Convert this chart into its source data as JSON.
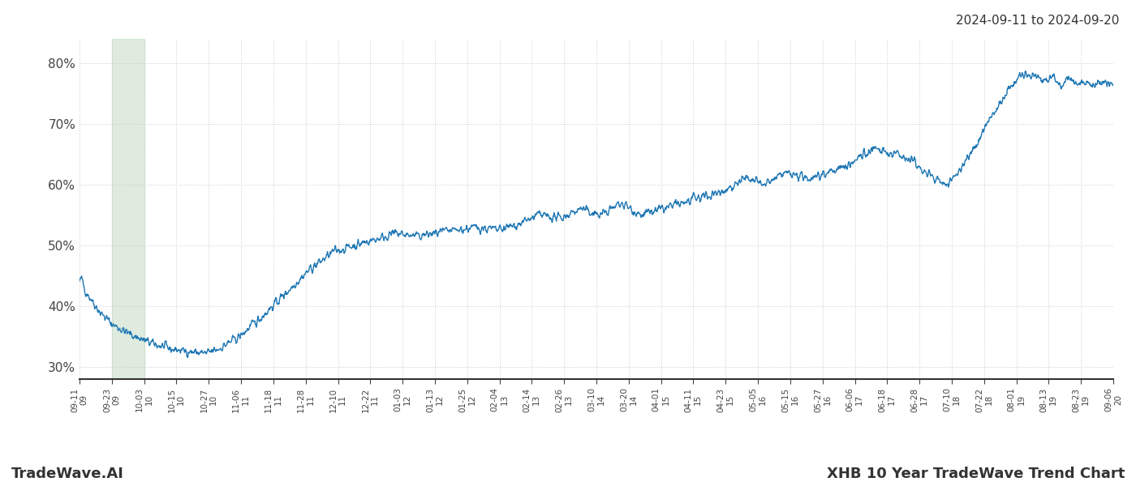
{
  "title_top_right": "2024-09-11 to 2024-09-20",
  "bottom_left": "TradeWave.AI",
  "bottom_right": "XHB 10 Year TradeWave Trend Chart",
  "line_color": "#1f77b4",
  "highlight_color": "#c8dfc8",
  "highlight_alpha": 0.6,
  "ylim": [
    28,
    84
  ],
  "yticks": [
    30,
    40,
    50,
    60,
    70,
    80
  ],
  "ytick_labels": [
    "30%",
    "40%",
    "50%",
    "60%",
    "70%",
    "80%"
  ],
  "background_color": "#ffffff",
  "grid_color": "#cccccc",
  "x_tick_labels": [
    "09-11",
    "09-23",
    "10-03",
    "10-15",
    "10-27",
    "11-06",
    "11-18",
    "11-28",
    "12-10",
    "12-22",
    "01-03",
    "01-13",
    "01-25",
    "02-04",
    "02-14",
    "02-26",
    "03-10",
    "03-20",
    "04-01",
    "04-11",
    "04-23",
    "05-05",
    "05-15",
    "05-27",
    "06-06",
    "06-18",
    "06-28",
    "07-10",
    "07-22",
    "08-01",
    "08-13",
    "08-23",
    "09-06"
  ],
  "x_tick_years": [
    "09",
    "09",
    "10",
    "10",
    "10",
    "11",
    "11",
    "11",
    "11",
    "11",
    "12",
    "12",
    "12",
    "13",
    "13",
    "13",
    "14",
    "14",
    "15",
    "15",
    "15",
    "16",
    "16",
    "16",
    "17",
    "17",
    "17",
    "18",
    "18",
    "19",
    "19",
    "19",
    "20"
  ]
}
